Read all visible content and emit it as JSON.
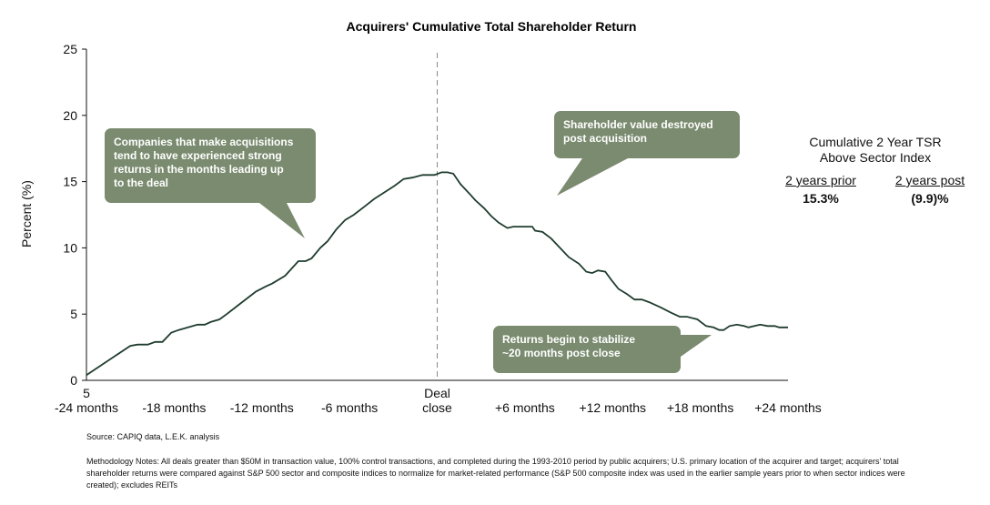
{
  "chart_data": {
    "type": "line",
    "title": "Acquirers' Cumulative Total Shareholder Return",
    "ylabel": "Percent (%)",
    "ylim": [
      0,
      25
    ],
    "yticks": [
      "0",
      "5",
      "10",
      "15",
      "20",
      "25"
    ],
    "x_range": [
      -24,
      24
    ],
    "x_tick_labels": [
      {
        "x": -24,
        "label": "5\n-24 months"
      },
      {
        "x": -18,
        "label": "-18 months"
      },
      {
        "x": -12,
        "label": "-12 months"
      },
      {
        "x": -6,
        "label": "-6 months"
      },
      {
        "x": 0,
        "label": "Deal\nclose"
      },
      {
        "x": 6,
        "label": "+6 months"
      },
      {
        "x": 12,
        "label": "+12 months"
      },
      {
        "x": 18,
        "label": "+18 months"
      },
      {
        "x": 24,
        "label": "+24 months"
      }
    ],
    "deal_close_x": 0,
    "x": [
      -24.0,
      -21.0,
      -20.5,
      -19.8,
      -19.3,
      -18.8,
      -18.2,
      -17.7,
      -16.4,
      -15.9,
      -15.5,
      -14.9,
      -14.4,
      -13.7,
      -12.4,
      -11.7,
      -11.3,
      -10.4,
      -9.5,
      -9.0,
      -8.6,
      -8.0,
      -7.5,
      -6.9,
      -6.3,
      -5.7,
      -5.0,
      -4.3,
      -3.6,
      -2.9,
      -2.3,
      -1.7,
      -1.0,
      -0.6,
      -0.2,
      0.3,
      0.7,
      1.1,
      1.6,
      2.2,
      2.6,
      3.2,
      3.7,
      4.2,
      4.8,
      5.2,
      6.5,
      6.7,
      7.2,
      7.8,
      8.4,
      9.0,
      9.7,
      10.2,
      10.6,
      11.0,
      11.5,
      11.9,
      12.4,
      13.0,
      13.5,
      14.0,
      14.5,
      15.3,
      16.0,
      16.6,
      17.1,
      17.8,
      18.4,
      18.9,
      19.3,
      19.6,
      20.0,
      20.5,
      21.0,
      21.3,
      21.7,
      22.1,
      22.6,
      23.1,
      23.4,
      23.7,
      24.0
    ],
    "y": [
      0.4,
      2.6,
      2.7,
      2.7,
      2.9,
      2.9,
      3.6,
      3.8,
      4.2,
      4.2,
      4.4,
      4.6,
      5.0,
      5.6,
      6.7,
      7.1,
      7.3,
      7.9,
      9.0,
      9.0,
      9.2,
      10.0,
      10.5,
      11.4,
      12.1,
      12.5,
      13.1,
      13.7,
      14.2,
      14.7,
      15.2,
      15.3,
      15.5,
      15.5,
      15.5,
      15.7,
      15.7,
      15.6,
      14.8,
      14.1,
      13.6,
      13.0,
      12.4,
      11.9,
      11.5,
      11.6,
      11.6,
      11.3,
      11.2,
      10.7,
      10.0,
      9.3,
      8.8,
      8.2,
      8.1,
      8.3,
      8.2,
      7.6,
      6.9,
      6.5,
      6.1,
      6.1,
      5.9,
      5.5,
      5.1,
      4.8,
      4.8,
      4.6,
      4.1,
      4.0,
      3.8,
      3.8,
      4.1,
      4.2,
      4.1,
      4.0,
      4.1,
      4.2,
      4.1,
      4.1,
      4.0,
      4.0,
      4.0
    ],
    "line_color": "#1f3d2e",
    "callouts": [
      {
        "text_lines": [
          "Companies that make acquisitions",
          "tend to have experienced strong",
          "returns in the months leading up",
          "to the deal"
        ]
      },
      {
        "text_lines": [
          "Shareholder value destroyed",
          "post acquisition"
        ]
      },
      {
        "text_lines": [
          "Returns begin to stabilize",
          "~20 months post close"
        ]
      }
    ],
    "callout_color": "#7a8b6f"
  },
  "stats": {
    "title_line1": "Cumulative 2 Year TSR",
    "title_line2": "Above Sector Index",
    "col1_head": "2 years prior",
    "col2_head": "2 years post",
    "col1_value": "15.3%",
    "col2_value": "(9.9)%"
  },
  "footer": {
    "source": "Source: CAPIQ data, L.E.K. analysis",
    "methodology": "Methodology Notes:  All deals greater than $50M in transaction value, 100% control transactions, and completed during the 1993-2010 period by public acquirers; U.S. primary location of the acquirer and target; acquirers' total shareholder returns were compared against S&P 500 sector and composite indices to normalize for market-related performance (S&P 500 composite index was used in the earlier sample years prior to when sector indices were created); excludes REITs"
  }
}
